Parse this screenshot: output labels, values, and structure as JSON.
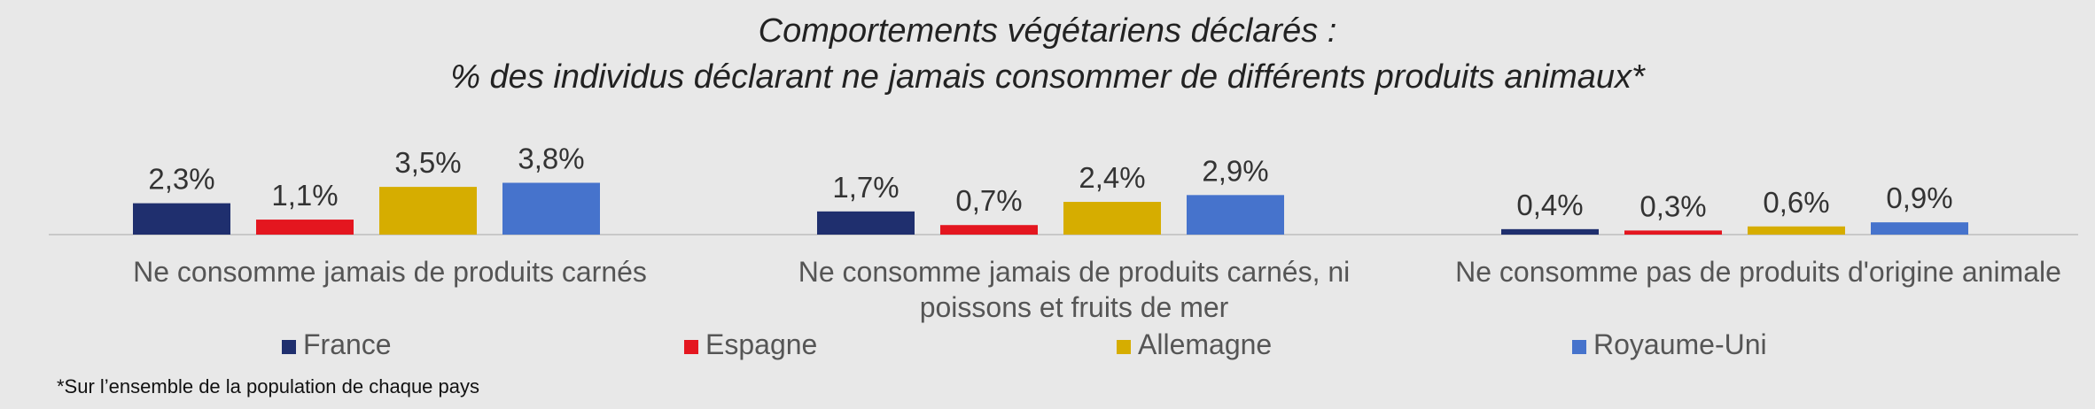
{
  "chart_data": {
    "type": "bar",
    "title_line1": "Comportements végétariens déclarés :",
    "title_line2": "% des individus déclarant ne jamais consommer de différents produits animaux*",
    "categories": [
      [
        "Ne consomme jamais de produits carnés"
      ],
      [
        "Ne consomme jamais de produits carnés, ni",
        "poissons et fruits de mer"
      ],
      [
        "Ne consomme pas de produits d'origine animale"
      ]
    ],
    "series": [
      {
        "name": "France",
        "color": "#1f2f6e",
        "values": [
          2.3,
          1.7,
          0.4
        ],
        "labels": [
          "2,3%",
          "1,7%",
          "0,4%"
        ]
      },
      {
        "name": "Espagne",
        "color": "#e4161f",
        "values": [
          1.1,
          0.7,
          0.3
        ],
        "labels": [
          "1,1%",
          "0,7%",
          "0,3%"
        ]
      },
      {
        "name": "Allemagne",
        "color": "#d6ad00",
        "values": [
          3.5,
          2.4,
          0.6
        ],
        "labels": [
          "3,5%",
          "2,4%",
          "0,6%"
        ]
      },
      {
        "name": "Royaume-Uni",
        "color": "#4673cc",
        "values": [
          3.8,
          2.9,
          0.9
        ],
        "labels": [
          "3,8%",
          "2,9%",
          "0,9%"
        ]
      }
    ],
    "legend_position": "bottom",
    "grid": false
  },
  "footnote": "*Sur l’ensemble de la population de chaque pays"
}
